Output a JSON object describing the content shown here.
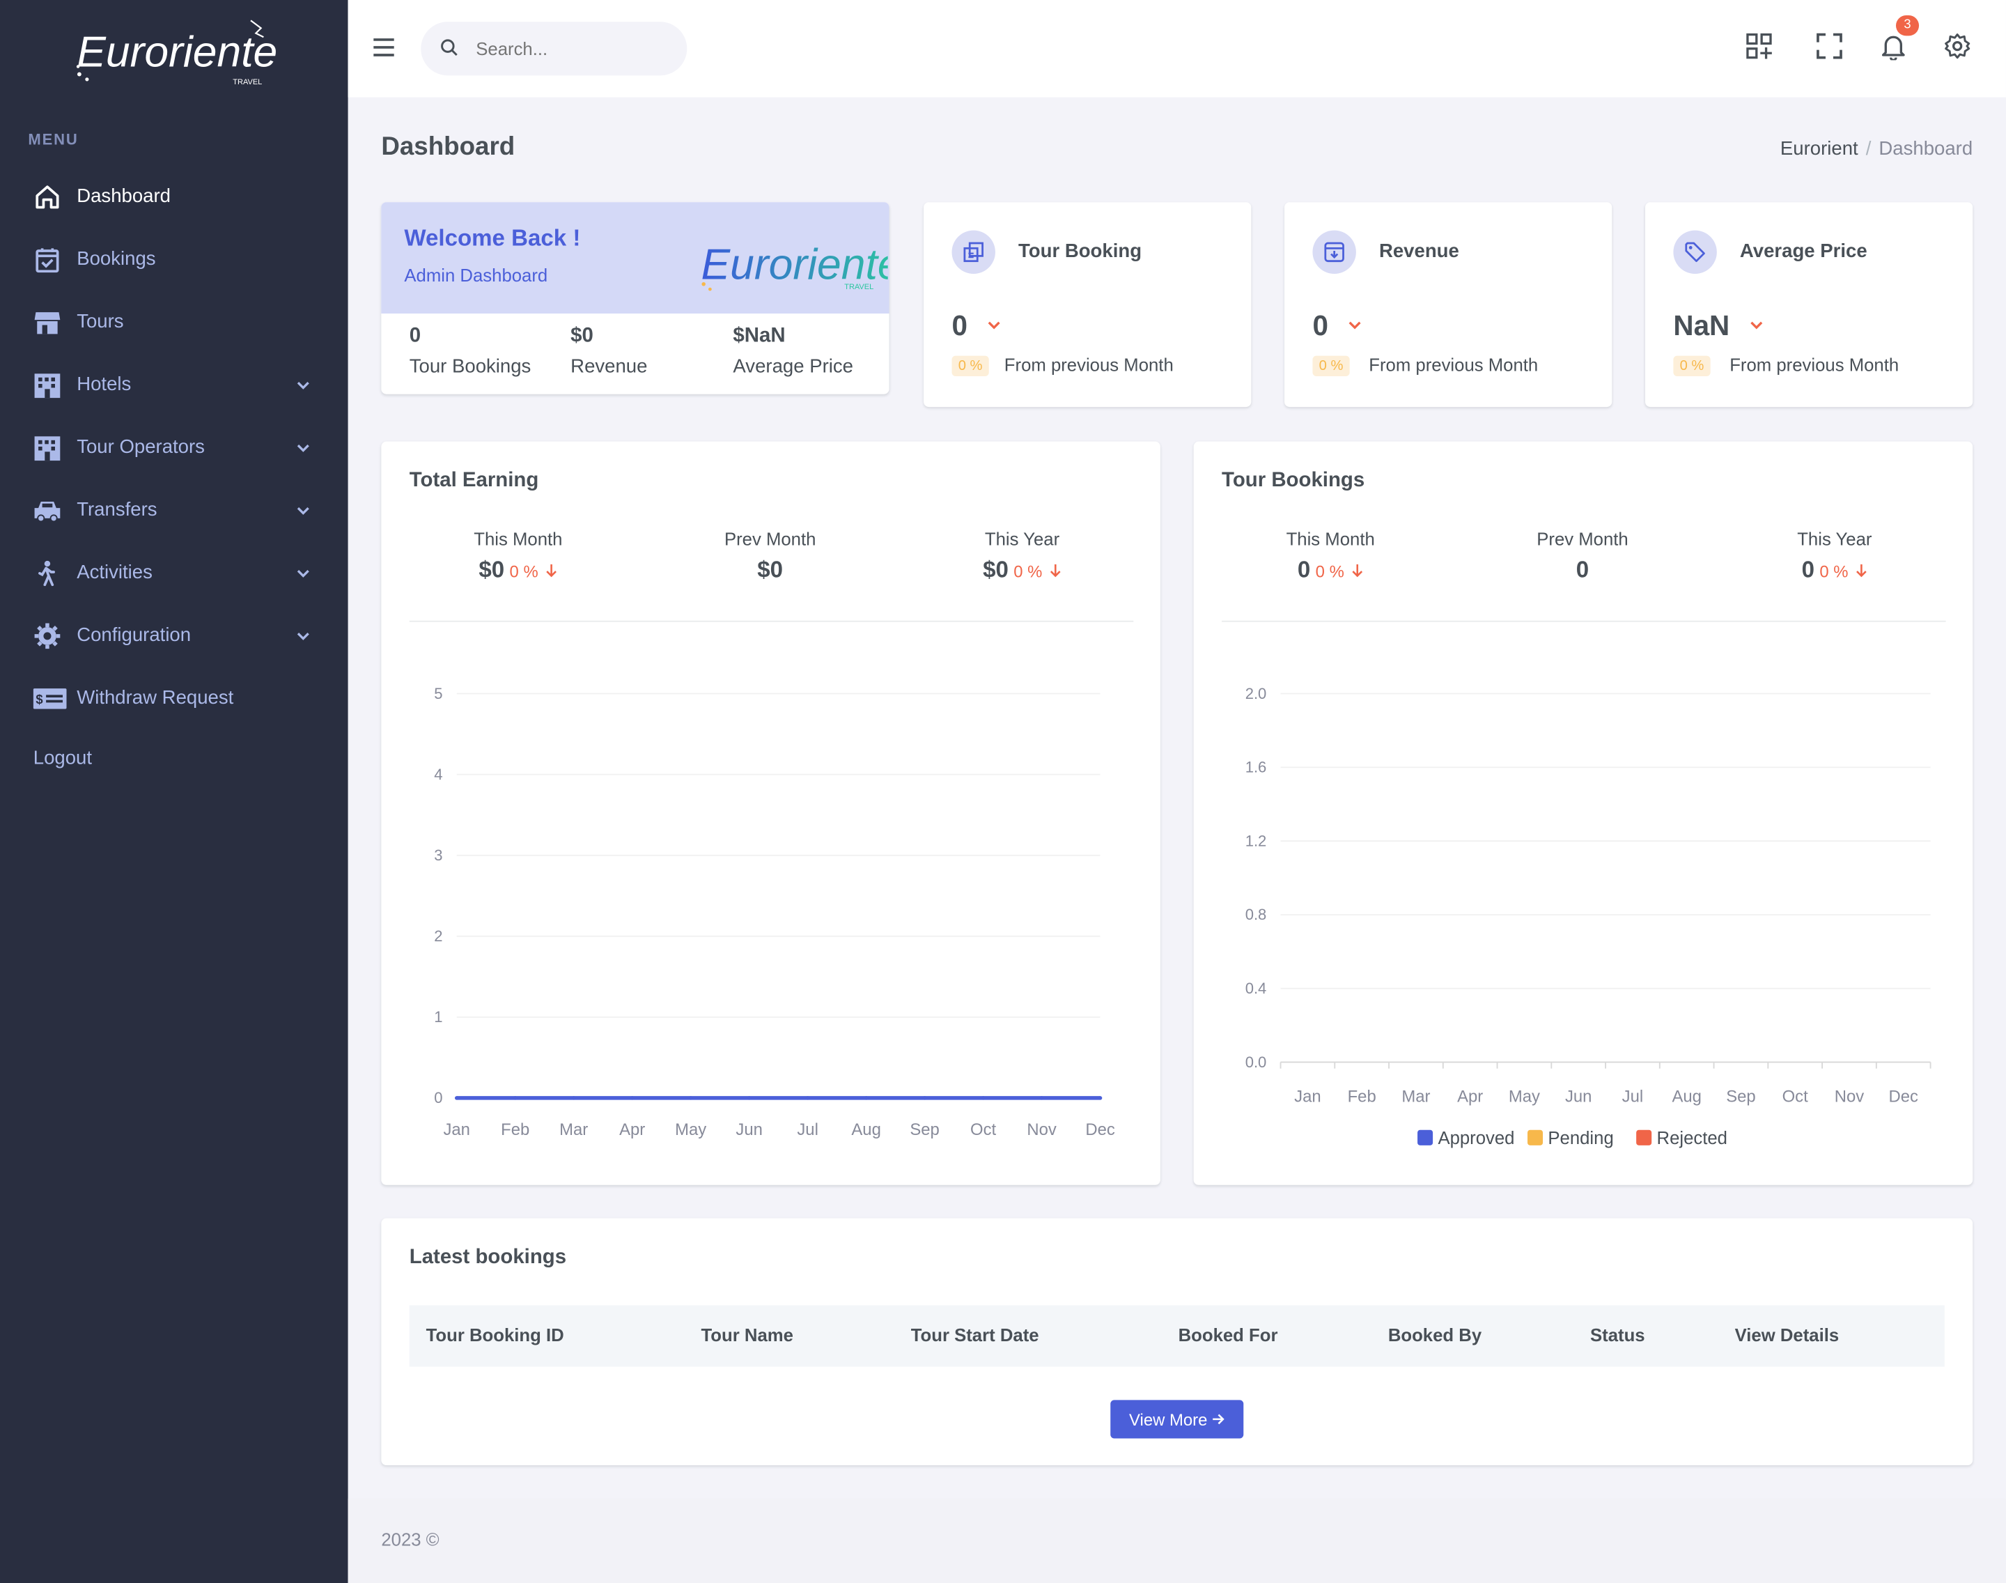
{
  "sidebar": {
    "logo_text": "Euroriente",
    "menu_label": "MENU",
    "items": [
      {
        "label": "Dashboard",
        "icon": "home-icon"
      },
      {
        "label": "Bookings",
        "icon": "calendar-check-icon"
      },
      {
        "label": "Tours",
        "icon": "store-icon"
      },
      {
        "label": "Hotels",
        "icon": "building-icon"
      },
      {
        "label": "Tour Operators",
        "icon": "building-icon"
      },
      {
        "label": "Transfers",
        "icon": "car-icon"
      },
      {
        "label": "Activities",
        "icon": "walking-icon"
      },
      {
        "label": "Configuration",
        "icon": "gear-icon"
      },
      {
        "label": "Withdraw Request",
        "icon": "money-icon"
      }
    ],
    "logout": "Logout"
  },
  "topbar": {
    "search_placeholder": "Search...",
    "notification_count": "3"
  },
  "page": {
    "title": "Dashboard",
    "breadcrumb": [
      "Eurorient",
      "Dashboard"
    ]
  },
  "welcome": {
    "title": "Welcome Back !",
    "subtitle": "Admin Dashboard",
    "stats": [
      {
        "value": "0",
        "label": "Tour Bookings"
      },
      {
        "value": "$0",
        "label": "Revenue"
      },
      {
        "value": "$NaN",
        "label": "Average Price"
      }
    ]
  },
  "kpis": [
    {
      "title": "Tour Booking",
      "value": "0",
      "pct": "0 %",
      "sub": "From previous Month"
    },
    {
      "title": "Revenue",
      "value": "0",
      "pct": "0 %",
      "sub": "From previous Month"
    },
    {
      "title": "Average Price",
      "value": "NaN",
      "pct": "0 %",
      "sub": "From previous Month"
    }
  ],
  "earning": {
    "title": "Total Earning",
    "stats": [
      {
        "label": "This Month",
        "value": "$0",
        "pct": "0 %"
      },
      {
        "label": "Prev Month",
        "value": "$0"
      },
      {
        "label": "This Year",
        "value": "$0",
        "pct": "0 %"
      }
    ]
  },
  "bookings_chart": {
    "title": "Tour Bookings",
    "stats": [
      {
        "label": "This Month",
        "value": "0",
        "pct": "0 %"
      },
      {
        "label": "Prev Month",
        "value": "0"
      },
      {
        "label": "This Year",
        "value": "0",
        "pct": "0 %"
      }
    ],
    "legend": [
      "Approved",
      "Pending",
      "Rejected"
    ]
  },
  "chart_data": [
    {
      "type": "line",
      "categories": [
        "Jan",
        "Feb",
        "Mar",
        "Apr",
        "May",
        "Jun",
        "Jul",
        "Aug",
        "Sep",
        "Oct",
        "Nov",
        "Dec"
      ],
      "series": [
        {
          "values": [
            0,
            0,
            0,
            0,
            0,
            0,
            0,
            0,
            0,
            0,
            0,
            0
          ],
          "color": "#4b5fd9"
        }
      ],
      "yticks": [
        "0",
        "1",
        "2",
        "3",
        "4",
        "5"
      ],
      "ylim": [
        0,
        5
      ],
      "grid": true
    },
    {
      "type": "bar",
      "categories": [
        "Jan",
        "Feb",
        "Mar",
        "Apr",
        "May",
        "Jun",
        "Jul",
        "Aug",
        "Sep",
        "Oct",
        "Nov",
        "Dec"
      ],
      "series": [
        {
          "name": "Approved",
          "values": [
            0,
            0,
            0,
            0,
            0,
            0,
            0,
            0,
            0,
            0,
            0,
            0
          ],
          "color": "#4b5fd9"
        },
        {
          "name": "Pending",
          "values": [
            0,
            0,
            0,
            0,
            0,
            0,
            0,
            0,
            0,
            0,
            0,
            0
          ],
          "color": "#f7b84b"
        },
        {
          "name": "Rejected",
          "values": [
            0,
            0,
            0,
            0,
            0,
            0,
            0,
            0,
            0,
            0,
            0,
            0
          ],
          "color": "#f06548"
        }
      ],
      "yticks": [
        "0.0",
        "0.4",
        "0.8",
        "1.2",
        "1.6",
        "2.0"
      ],
      "ylim": [
        0,
        2
      ],
      "grid": true,
      "legend": "bottom"
    }
  ],
  "latest": {
    "title": "Latest bookings",
    "columns": [
      "Tour Booking ID",
      "Tour Name",
      "Tour Start Date",
      "Booked For",
      "Booked By",
      "Status",
      "View Details"
    ],
    "view_more": "View More"
  },
  "footer": {
    "text": "2023 ©"
  }
}
